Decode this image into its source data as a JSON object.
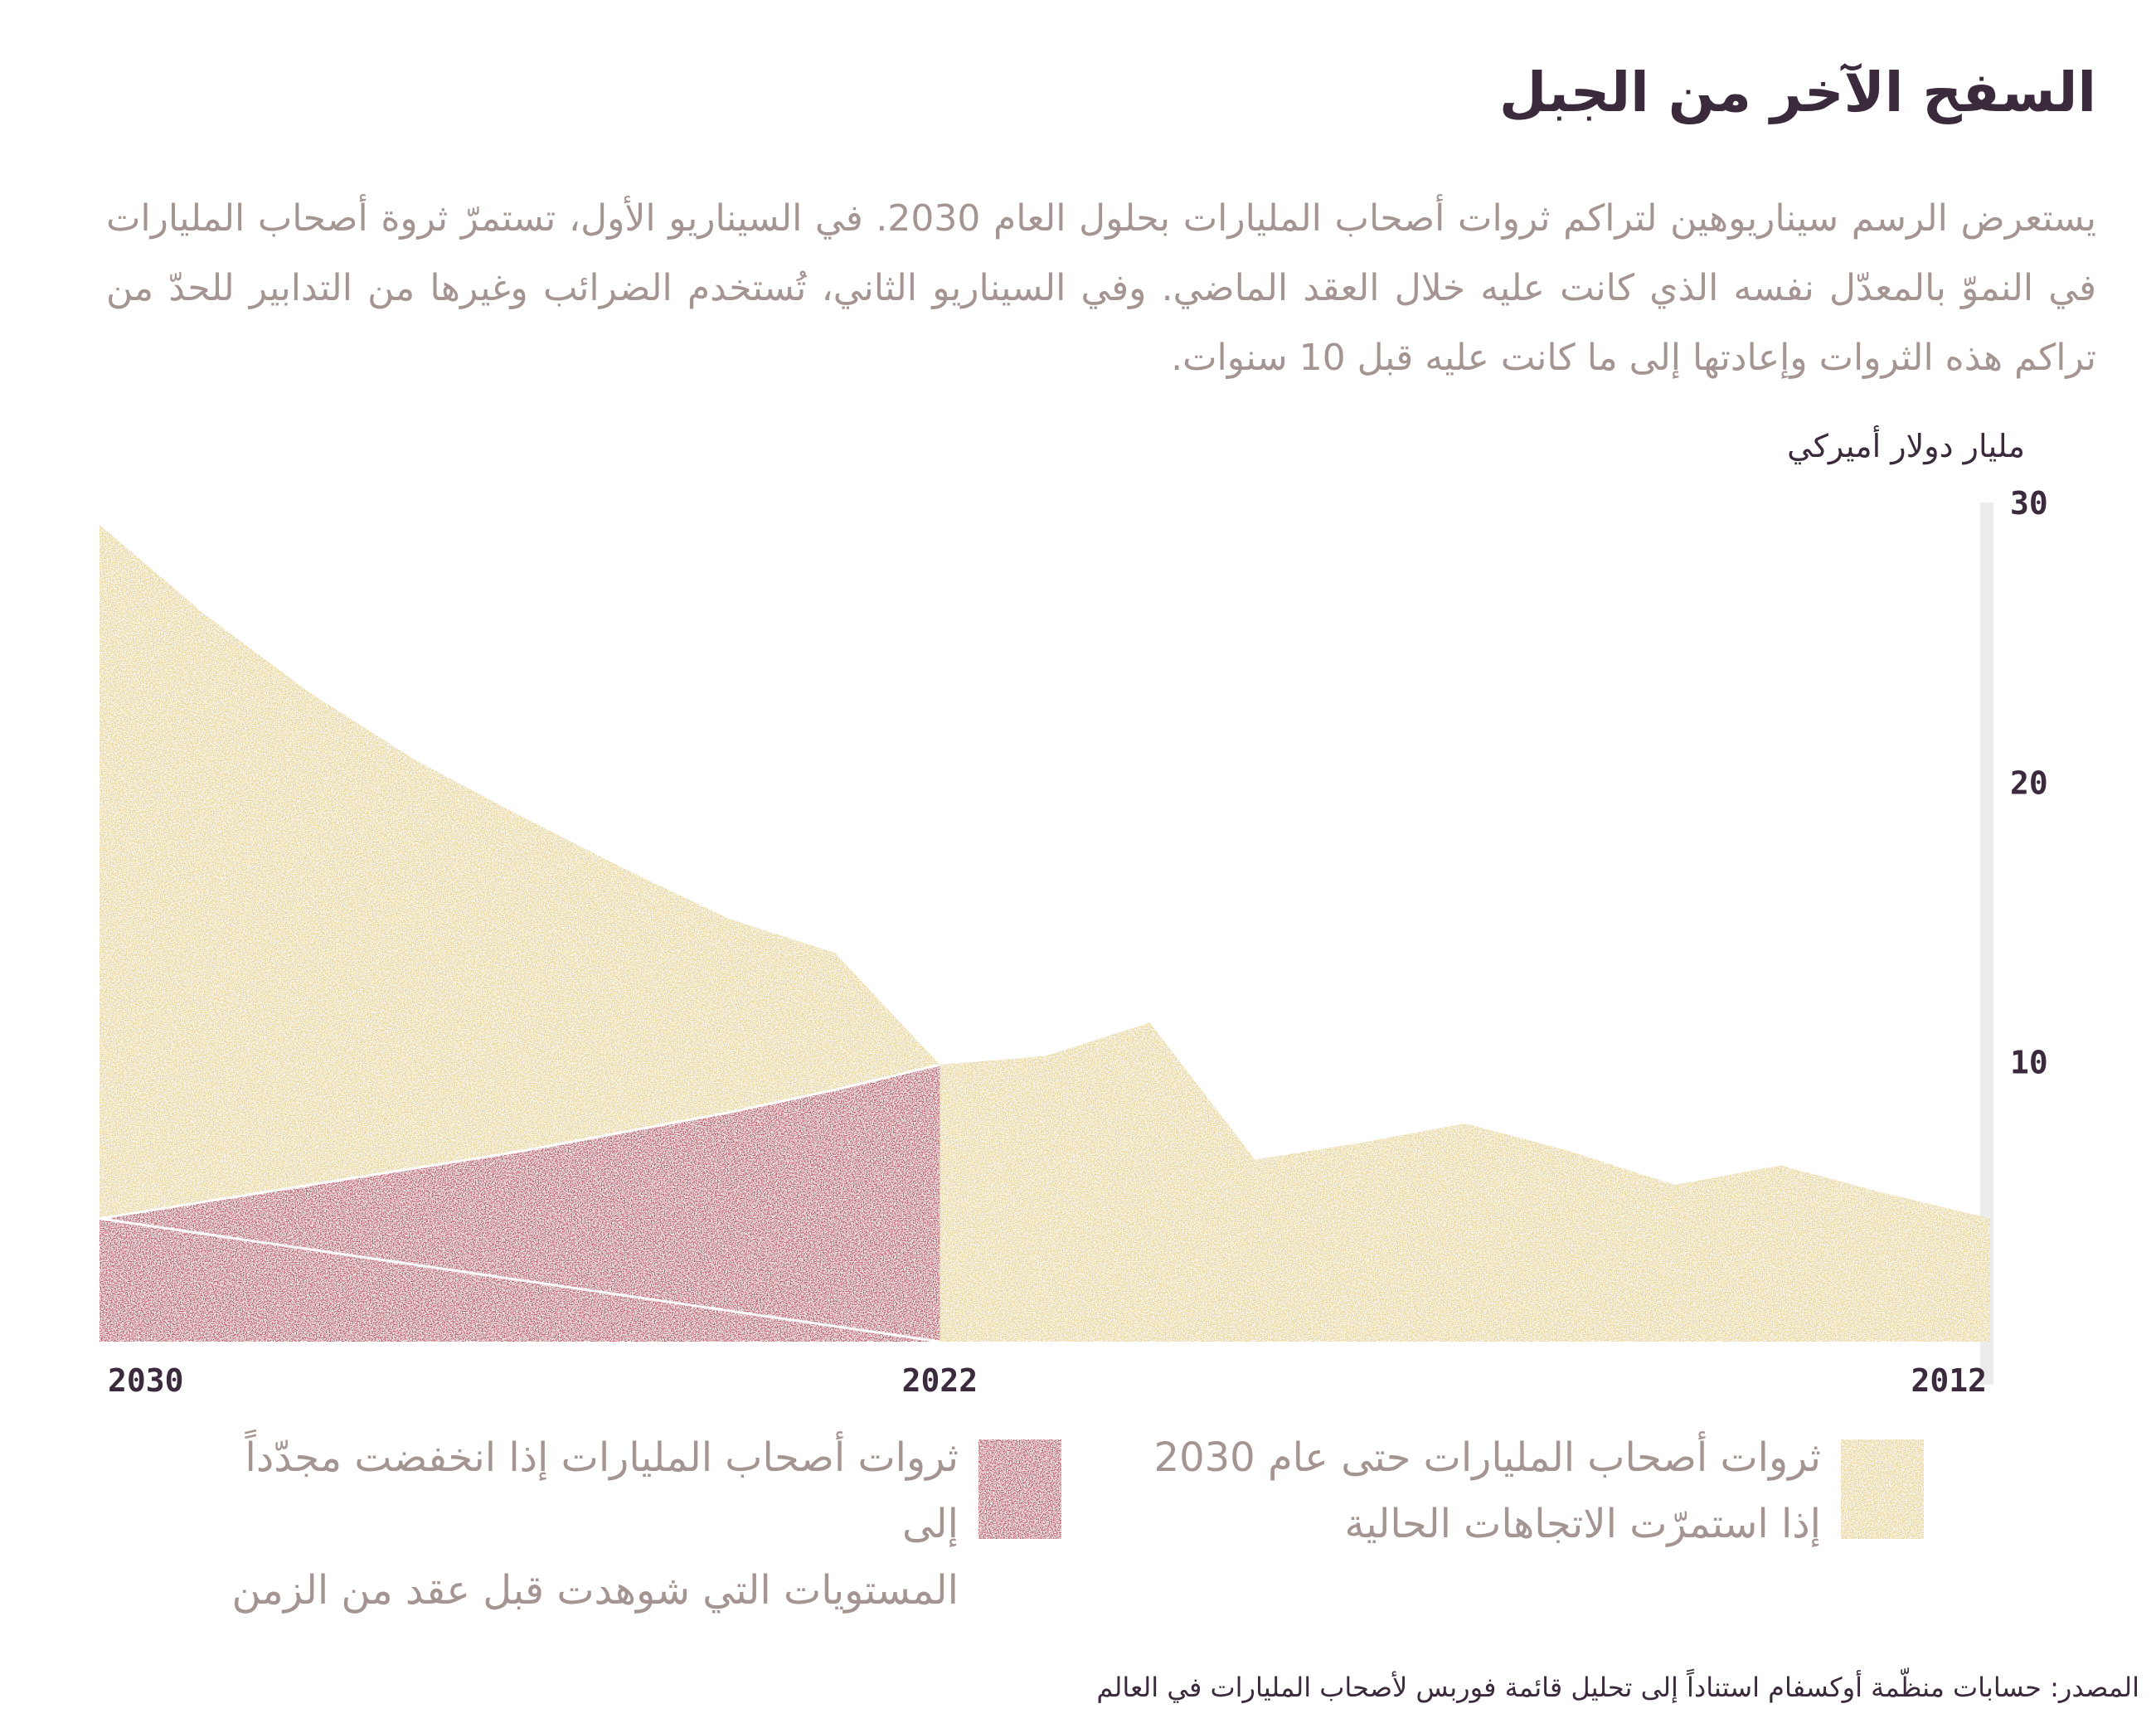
{
  "title": "السفح الآخر من الجبل",
  "description": "يستعرض الرسم سيناريوهين لتراكم ثروات أصحاب المليارات بحلول العام 2030. في السيناريو الأول، تستمرّ ثروة أصحاب المليارات في النموّ بالمعدّل نفسه الذي كانت عليه خلال العقد الماضي. وفي السيناريو الثاني، تُستخدم الضرائب وغيرها من التدابير للحدّ من تراكم هذه الثروات وإعادتها إلى ما كانت عليه قبل 10 سنوات.",
  "source": "المصدر: حسابات منظّمة أوكسفام استناداً إلى تحليل قائمة فوربس لأصحاب المليارات في العالم",
  "chart_data": {
    "type": "area",
    "ylabel": "مليار دولار أميركي",
    "ylim": [
      0,
      30
    ],
    "yticks": [
      "10",
      "20",
      "30"
    ],
    "ytick_values": [
      10,
      20,
      30
    ],
    "xlim": [
      2012,
      2030
    ],
    "x_direction": "right-to-left",
    "xticks": [
      {
        "value": 2030,
        "label": "2030"
      },
      {
        "value": 2022,
        "label": "2022"
      },
      {
        "value": 2012,
        "label": "2012"
      }
    ],
    "series": [
      {
        "name": "ثروات أصحاب المليارات حتى عام 2030 إذا استمرّت الاتجاهات الحالية",
        "color": "#e6d28e",
        "x": [
          2012,
          2013,
          2014,
          2015,
          2016,
          2017,
          2018,
          2019,
          2020,
          2021,
          2022,
          2023,
          2024,
          2025,
          2026,
          2027,
          2028,
          2029,
          2030
        ],
        "values": [
          4.4,
          5.3,
          6.3,
          5.6,
          6.8,
          7.8,
          7.1,
          6.5,
          11.4,
          10.2,
          9.9,
          13.9,
          15.1,
          16.9,
          18.8,
          20.8,
          23.2,
          26.0,
          29.2
        ]
      },
      {
        "name": "ثروات أصحاب المليارات إذا انخفضت مجدّداً إلى المستويات التي شوهدت قبل عقد من الزمن",
        "color": "#b84a5a",
        "x": [
          2022,
          2023,
          2024,
          2025,
          2026,
          2027,
          2028,
          2029,
          2030
        ],
        "values": [
          9.9,
          9.0,
          8.2,
          7.5,
          6.8,
          6.2,
          5.6,
          5.0,
          4.4
        ]
      }
    ],
    "legend_lines": [
      [
        "ثروات أصحاب المليارات حتى عام 2030",
        "إذا استمرّت الاتجاهات الحالية"
      ],
      [
        "ثروات أصحاب المليارات إذا انخفضت مجدّداً إلى",
        "المستويات التي شوهدت قبل عقد من الزمن"
      ]
    ]
  }
}
